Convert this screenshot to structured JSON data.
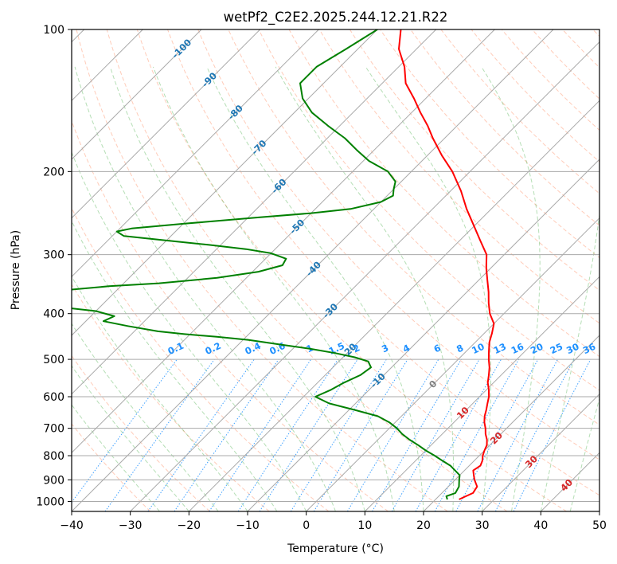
{
  "chart_data": {
    "type": "line",
    "title": "wetPf2_C2E2.2025.244.12.21.R22",
    "xlabel": "Temperature (°C)",
    "ylabel": "Pressure (hPa)",
    "xlim": [
      -40,
      50
    ],
    "ylim": [
      1050,
      100
    ],
    "y_scale": "log",
    "skew": "skew-T log-P diagram",
    "grid": true,
    "x_ticks": [
      -40,
      -30,
      -20,
      -10,
      0,
      10,
      20,
      30,
      40,
      50
    ],
    "x_tick_labels": [
      "−40",
      "−30",
      "−20",
      "−10",
      "0",
      "10",
      "20",
      "30",
      "40",
      "50"
    ],
    "y_ticks": [
      100,
      200,
      300,
      400,
      500,
      600,
      700,
      800,
      900,
      1000
    ],
    "y_tick_labels": [
      "100",
      "200",
      "300",
      "400",
      "500",
      "600",
      "700",
      "800",
      "900",
      "1000"
    ],
    "series": [
      {
        "color": "#ff0000",
        "p": [
          990,
          960,
          930,
          900,
          880,
          860,
          840,
          820,
          800,
          780,
          760,
          740,
          720,
          700,
          680,
          660,
          640,
          620,
          600,
          580,
          560,
          540,
          520,
          500,
          480,
          460,
          440,
          420,
          400,
          380,
          360,
          340,
          320,
          300,
          280,
          260,
          240,
          220,
          200,
          185,
          170,
          160,
          150,
          140,
          130,
          120,
          110,
          100
        ],
        "t": [
          24.0,
          25.3,
          24.9,
          23.3,
          22.4,
          21.5,
          21.9,
          21.4,
          20.6,
          20.0,
          19.5,
          18.6,
          17.4,
          16.4,
          15.2,
          14.2,
          13.4,
          12.5,
          11.6,
          10.4,
          9.0,
          7.9,
          6.7,
          5.2,
          3.8,
          2.4,
          1.3,
          0.0,
          -2.4,
          -4.4,
          -6.3,
          -8.5,
          -10.8,
          -13.0,
          -16.5,
          -20.2,
          -24.2,
          -28.2,
          -33.0,
          -37.5,
          -42.0,
          -45.0,
          -48.5,
          -52.0,
          -56.0,
          -59.0,
          -63.0,
          -66.0
        ],
        "note": "temperature"
      },
      {
        "color": "#008000",
        "p": [
          990,
          975,
          960,
          930,
          900,
          880,
          860,
          840,
          820,
          800,
          780,
          760,
          740,
          720,
          700,
          680,
          660,
          640,
          620,
          600,
          580,
          560,
          540,
          520,
          505,
          495,
          485,
          475,
          465,
          455,
          448,
          442,
          436,
          425,
          415,
          405,
          395,
          385,
          378,
          370,
          358,
          350,
          345,
          336,
          326,
          316,
          306,
          298,
          292,
          286,
          280,
          274,
          268,
          264,
          258,
          250,
          245,
          240,
          232,
          225,
          218,
          210,
          200,
          190,
          180,
          170,
          160,
          150,
          140,
          130,
          120,
          110,
          100
        ],
        "t": [
          22.0,
          21.3,
          22.3,
          21.8,
          20.7,
          20.0,
          18.4,
          16.8,
          14.6,
          12.4,
          10.0,
          7.8,
          5.4,
          3.2,
          1.3,
          -1.0,
          -4.0,
          -9.0,
          -14.5,
          -18.0,
          -16.5,
          -15.5,
          -14.0,
          -13.5,
          -15.0,
          -18.0,
          -22.0,
          -27.0,
          -33.0,
          -39.0,
          -45.0,
          -51.0,
          -56.0,
          -62.0,
          -67.0,
          -66.0,
          -70.0,
          -79.0,
          -86.0,
          -86.5,
          -80.0,
          -72.0,
          -64.0,
          -55.0,
          -49.0,
          -46.0,
          -46.5,
          -50.0,
          -55.0,
          -62.0,
          -70.0,
          -78.0,
          -80.0,
          -78.0,
          -70.0,
          -58.0,
          -50.0,
          -44.0,
          -40.0,
          -39.0,
          -40.0,
          -41.0,
          -44.0,
          -49.0,
          -53.0,
          -57.0,
          -62.0,
          -67.0,
          -71.0,
          -74.0,
          -74.0,
          -72.0,
          -70.0
        ],
        "note": "dewpoint"
      }
    ],
    "isotherm_labels": [
      "-100",
      "-90",
      "-80",
      "-70",
      "-60",
      "-50",
      "-40",
      "-30",
      "-20",
      "-10",
      "0",
      "10",
      "20",
      "30",
      "40"
    ],
    "isotherm_label_values": [
      -100,
      -90,
      -80,
      -70,
      -60,
      -50,
      -40,
      -30,
      -20,
      -10,
      0,
      10,
      20,
      30,
      40
    ],
    "mixing_ratio_labels": [
      "0.1",
      "0.2",
      "0.4",
      "0.6",
      "1",
      "1.5",
      "2",
      "3",
      "4",
      "6",
      "8",
      "10",
      "13",
      "16",
      "20",
      "25",
      "30",
      "36"
    ],
    "mixing_ratio_values": [
      0.1,
      0.2,
      0.4,
      0.6,
      1,
      1.5,
      2,
      3,
      4,
      6,
      8,
      10,
      13,
      16,
      20,
      25,
      30,
      36
    ],
    "colors": {
      "temperature": "#ff0000",
      "dewpoint": "#008000",
      "isotherm_cold_label": "#1f77b4",
      "isotherm_warm_label": "#d62728",
      "isotherm_zero_label": "#808080",
      "mixing_ratio": "#1e90ff",
      "dry_adiabat": "#ff7f50",
      "moist_adiabat": "#2ca02c",
      "grid": "#aaaaaa"
    }
  }
}
